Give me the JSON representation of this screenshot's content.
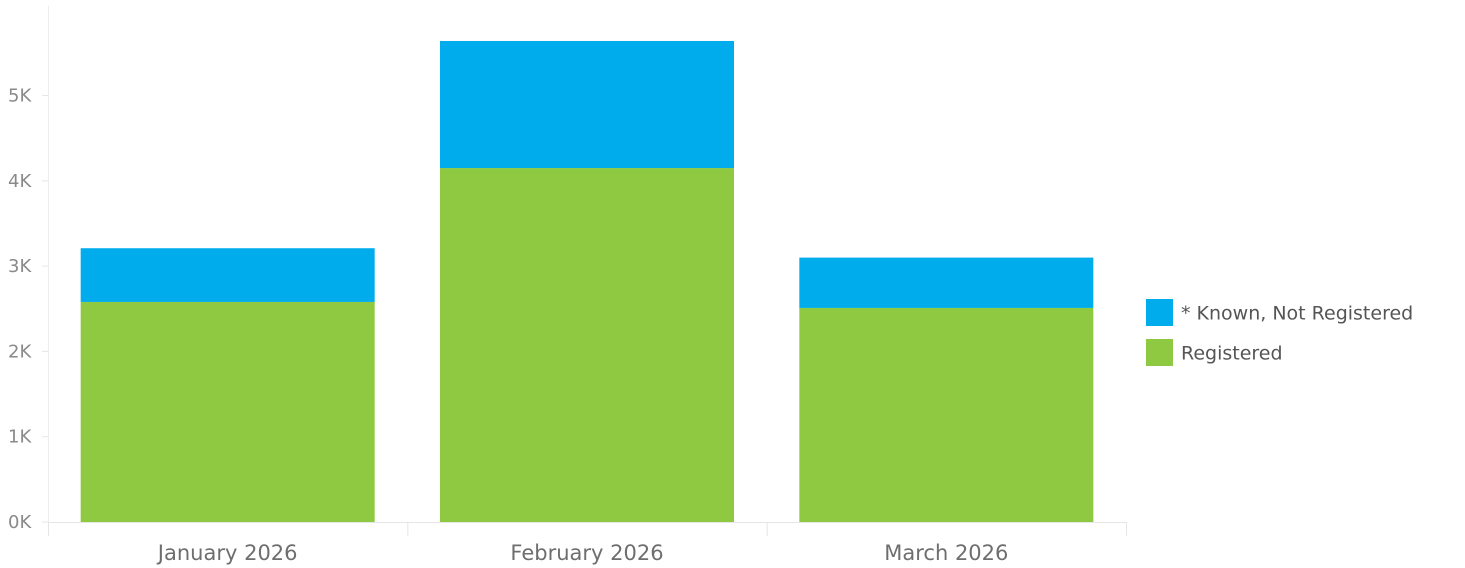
{
  "chart_data": {
    "type": "bar",
    "stacked": true,
    "categories": [
      "January 2026",
      "February 2026",
      "March 2026"
    ],
    "series": [
      {
        "name": "Registered",
        "color": "#8fc941",
        "values": [
          2580,
          4150,
          2510
        ]
      },
      {
        "name": "* Known, Not Registered",
        "color": "#01acec",
        "values": [
          630,
          1490,
          590
        ]
      }
    ],
    "y_ticks": [
      {
        "value": 0,
        "label": "0K"
      },
      {
        "value": 1000,
        "label": "1K"
      },
      {
        "value": 2000,
        "label": "2K"
      },
      {
        "value": 3000,
        "label": "3K"
      },
      {
        "value": 4000,
        "label": "4K"
      },
      {
        "value": 5000,
        "label": "5K"
      }
    ],
    "ylim": [
      0,
      6050
    ],
    "grid": false,
    "legend": {
      "placement": "right",
      "entries": [
        {
          "label": "* Known, Not Registered",
          "color": "#01acec"
        },
        {
          "label": "Registered",
          "color": "#8fc941"
        }
      ]
    }
  }
}
